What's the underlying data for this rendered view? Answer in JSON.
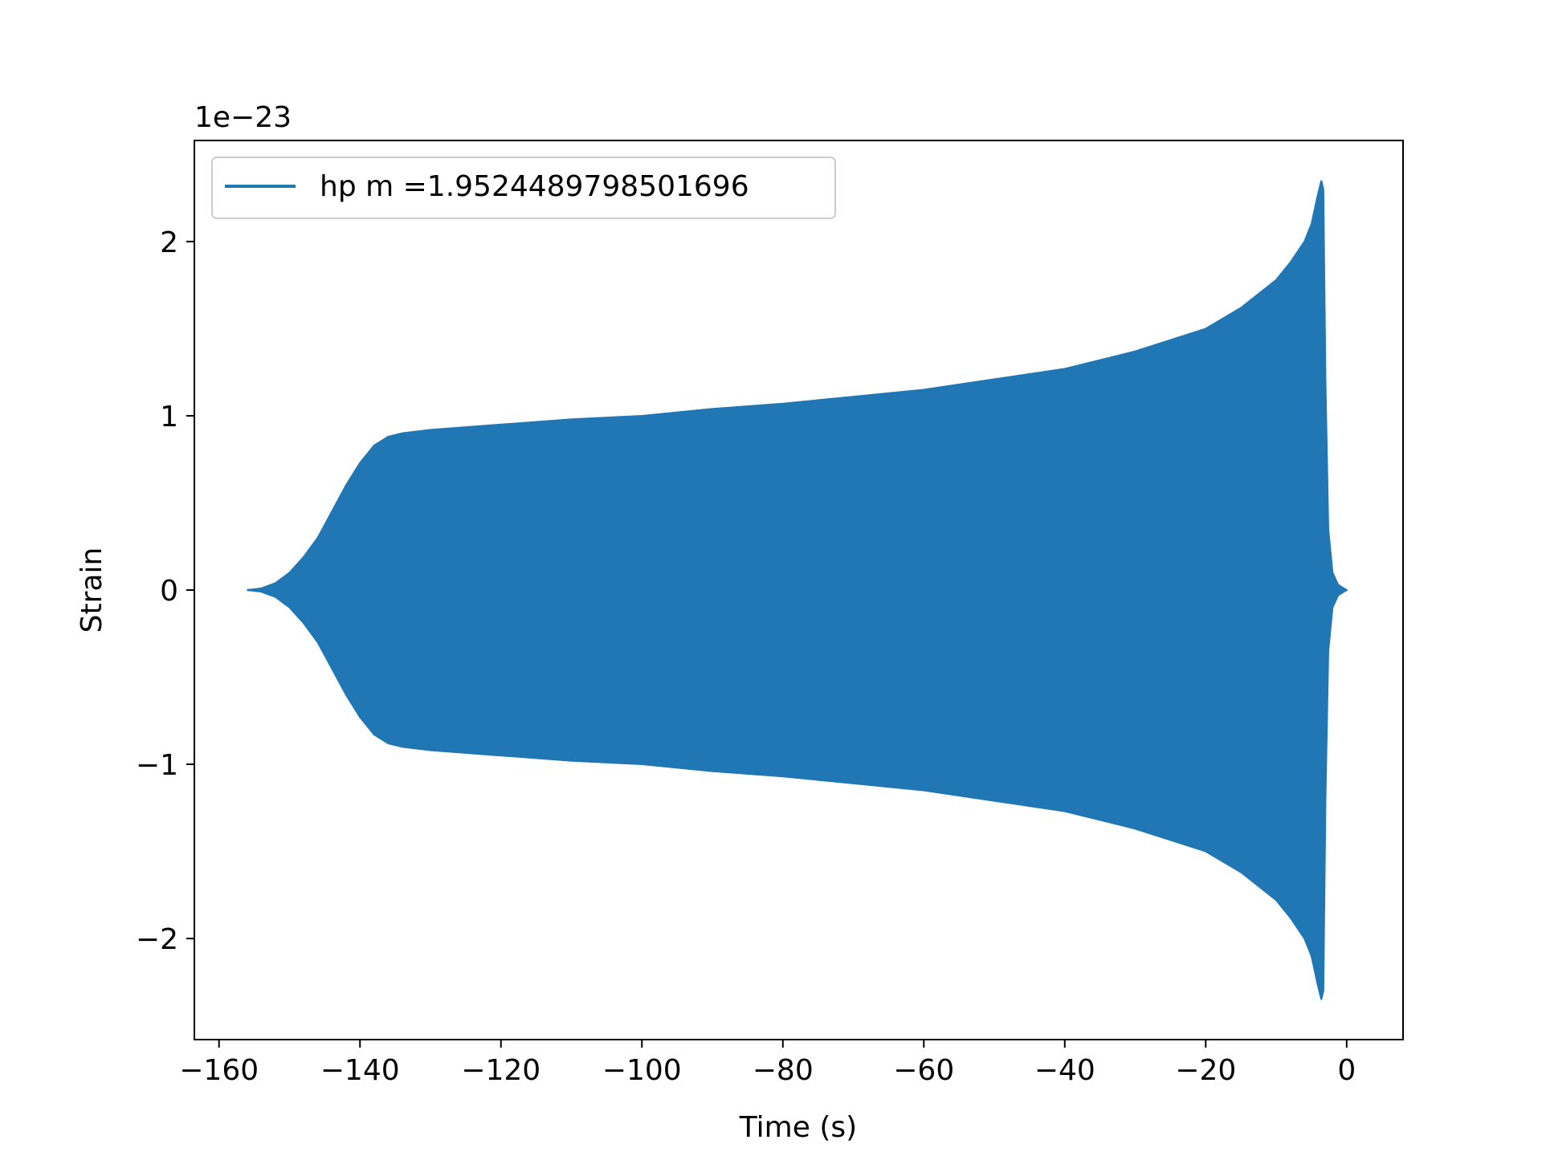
{
  "chart_data": {
    "type": "line",
    "title": "",
    "xlabel": "Time (s)",
    "ylabel": "Strain",
    "offset_text": "1e−23",
    "y_scale_exponent": -23,
    "xlim": [
      -163.5,
      8.0
    ],
    "ylim": [
      -2.58,
      2.58
    ],
    "x_ticks": [
      -160,
      -140,
      -120,
      -100,
      -80,
      -60,
      -40,
      -20,
      0
    ],
    "x_tick_labels": [
      "−160",
      "−140",
      "−120",
      "−100",
      "−80",
      "−60",
      "−40",
      "−20",
      "0"
    ],
    "y_ticks": [
      -2,
      -1,
      0,
      1,
      2
    ],
    "y_tick_labels": [
      "−2",
      "−1",
      "0",
      "1",
      "2"
    ],
    "grid": false,
    "legend_position": "upper-left",
    "series": [
      {
        "name": "hp m =1.9524489798501696",
        "color": "#2077b4",
        "style": "dense oscillation filling a symmetric envelope",
        "envelope": {
          "x": [
            -156.0,
            -154.0,
            -152.0,
            -150.0,
            -148.0,
            -146.0,
            -144.0,
            -142.0,
            -140.0,
            -138.0,
            -136.0,
            -134.0,
            -132.0,
            -130.0,
            -120.0,
            -110.0,
            -100.0,
            -90.0,
            -80.0,
            -70.0,
            -60.0,
            -50.0,
            -40.0,
            -30.0,
            -20.0,
            -15.0,
            -10.0,
            -8.0,
            -6.0,
            -5.0,
            -4.2,
            -3.6,
            -3.3,
            -3.0,
            -2.6,
            -2.0,
            -1.2,
            0.0
          ],
          "amplitude": [
            0.0,
            0.01,
            0.04,
            0.1,
            0.19,
            0.3,
            0.45,
            0.6,
            0.73,
            0.83,
            0.88,
            0.9,
            0.91,
            0.92,
            0.95,
            0.98,
            1.0,
            1.04,
            1.07,
            1.11,
            1.15,
            1.21,
            1.27,
            1.37,
            1.5,
            1.62,
            1.78,
            1.88,
            2.0,
            2.1,
            2.25,
            2.35,
            2.3,
            1.2,
            0.35,
            0.1,
            0.03,
            0.0
          ]
        }
      }
    ]
  }
}
